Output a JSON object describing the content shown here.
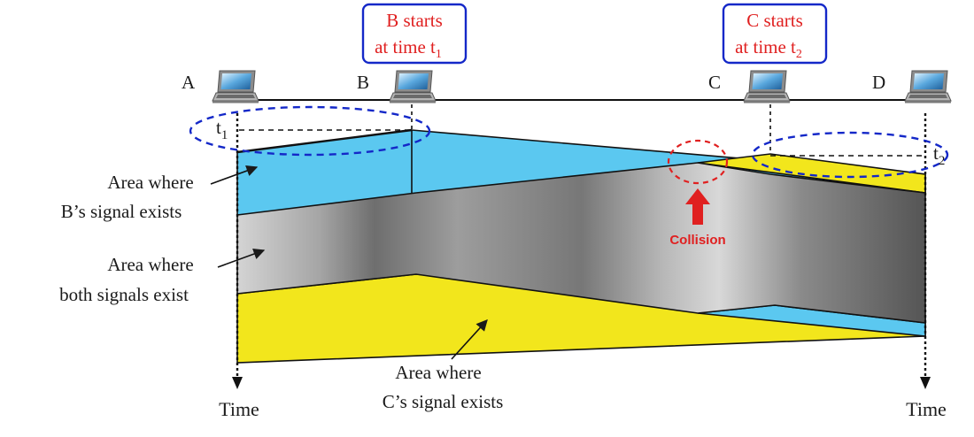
{
  "stations": [
    {
      "name": "A"
    },
    {
      "name": "B"
    },
    {
      "name": "C"
    },
    {
      "name": "D"
    }
  ],
  "callouts": {
    "b_start": {
      "line1": "B starts",
      "line2": "at time t",
      "sub": "1"
    },
    "c_start": {
      "line1": "C starts",
      "line2": "at time t",
      "sub": "2"
    }
  },
  "time_marks": {
    "t1": {
      "base": "t",
      "sub": "1"
    },
    "t2": {
      "base": "t",
      "sub": "2"
    }
  },
  "collision_label": "Collision",
  "area_labels": {
    "b_signal": {
      "line1": "Area where",
      "line2": "B’s signal exists"
    },
    "both_signals": {
      "line1": "Area where",
      "line2": "both signals exist"
    },
    "c_signal": {
      "line1": "Area where",
      "line2": "C’s signal exists"
    }
  },
  "axis_labels": {
    "left": "Time",
    "right": "Time"
  },
  "colors": {
    "b_signal": "#5bc8f0",
    "c_signal": "#f2e61c",
    "overlap_gray": "#9a9a9a",
    "callout_text": "#e02020",
    "callout_border": "#1428c8",
    "dashed_ellipse": "#1428c8",
    "collision_marker": "#e02020"
  },
  "icons": {
    "station": "laptop-icon",
    "collision_pointer": "up-arrow-icon"
  }
}
